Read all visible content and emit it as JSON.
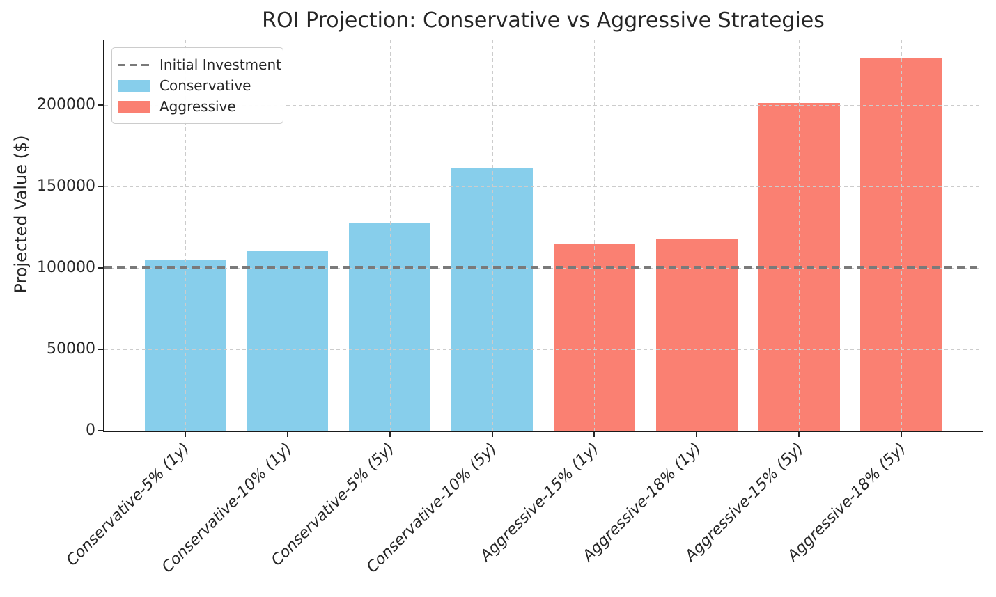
{
  "chart_data": {
    "type": "bar",
    "title": "ROI Projection: Conservative vs Aggressive Strategies",
    "xlabel": "",
    "ylabel": "Projected Value ($)",
    "categories": [
      "Conservative-5% (1y)",
      "Conservative-10% (1y)",
      "Conservative-5% (5y)",
      "Conservative-10% (5y)",
      "Aggressive-15% (1y)",
      "Aggressive-18% (1y)",
      "Aggressive-15% (5y)",
      "Aggressive-18% (5y)"
    ],
    "values": [
      105000,
      110000,
      127628,
      161051,
      115000,
      118000,
      201136,
      228776
    ],
    "groups": [
      "Conservative",
      "Conservative",
      "Conservative",
      "Conservative",
      "Aggressive",
      "Aggressive",
      "Aggressive",
      "Aggressive"
    ],
    "series_colors": {
      "Conservative": "#87CEEB",
      "Aggressive": "#FA8072"
    },
    "reference_line": {
      "label": "Initial Investment",
      "value": 100000,
      "color": "#7a7a7a",
      "style": "dashed"
    },
    "yticks": [
      0,
      50000,
      100000,
      150000,
      200000
    ],
    "ylim": [
      0,
      240000
    ],
    "grid": true,
    "grid_style": "dashed",
    "grid_color": "#cccccc",
    "x_tick_rotation_deg": 45,
    "legend": {
      "position": "upper-left",
      "entries": [
        {
          "label": "Initial Investment",
          "type": "dashed-line",
          "color": "#7a7a7a"
        },
        {
          "label": "Conservative",
          "type": "patch",
          "color": "#87CEEB"
        },
        {
          "label": "Aggressive",
          "type": "patch",
          "color": "#FA8072"
        }
      ]
    }
  }
}
